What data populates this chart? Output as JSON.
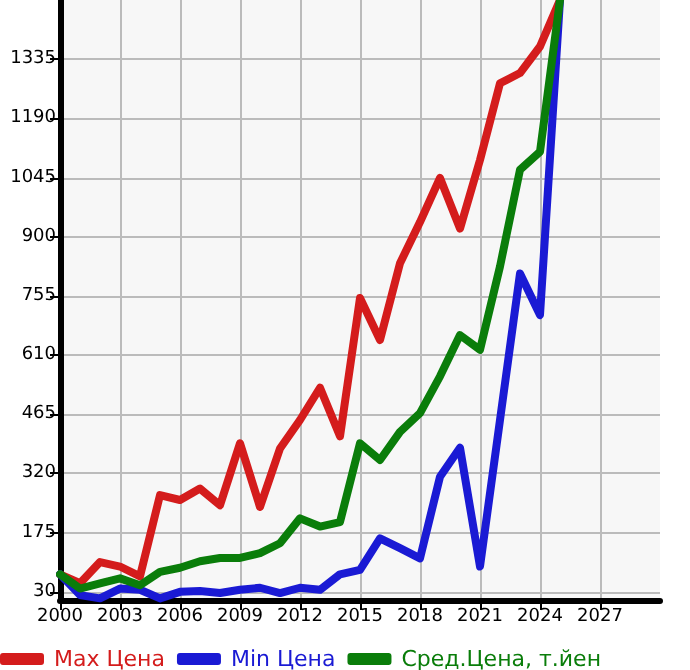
{
  "chart_data": {
    "type": "line",
    "x": [
      2000,
      2001,
      2002,
      2003,
      2004,
      2005,
      2006,
      2007,
      2008,
      2009,
      2010,
      2011,
      2012,
      2013,
      2014,
      2015,
      2016,
      2017,
      2018,
      2019,
      2020,
      2021,
      2022,
      2023,
      2024,
      2025
    ],
    "series": [
      {
        "name": "Max Цена",
        "color": "#d41c1c",
        "values": [
          73,
          51,
          103,
          92,
          68,
          267,
          255,
          283,
          242,
          394,
          238,
          381,
          451,
          530,
          411,
          750,
          647,
          835,
          936,
          1044,
          920,
          1088,
          1276,
          1301,
          1366,
          1480
        ]
      },
      {
        "name": "Min Цена",
        "color": "#1a1ad4",
        "values": [
          73,
          22,
          14,
          38,
          35,
          14,
          30,
          32,
          27,
          35,
          40,
          27,
          40,
          35,
          73,
          84,
          161,
          137,
          112,
          312,
          383,
          92,
          451,
          810,
          708,
          1480
        ]
      },
      {
        "name": "Сред.Цена, т.йен",
        "color": "#0a7d0a",
        "values": [
          73,
          38,
          51,
          63,
          46,
          79,
          89,
          105,
          113,
          113,
          125,
          149,
          210,
          190,
          201,
          394,
          353,
          422,
          468,
          558,
          659,
          623,
          827,
          1064,
          1108,
          1480
        ]
      }
    ],
    "xlim": [
      2000,
      2030
    ],
    "xticks": [
      2000,
      2003,
      2006,
      2009,
      2012,
      2015,
      2018,
      2021,
      2024,
      2027
    ],
    "ylim": [
      10,
      1480
    ],
    "yticks": [
      30,
      175,
      320,
      465,
      610,
      755,
      900,
      1045,
      1190,
      1335
    ],
    "grid": true,
    "legend": "bottom",
    "marker": "none",
    "line_style": "solid"
  }
}
